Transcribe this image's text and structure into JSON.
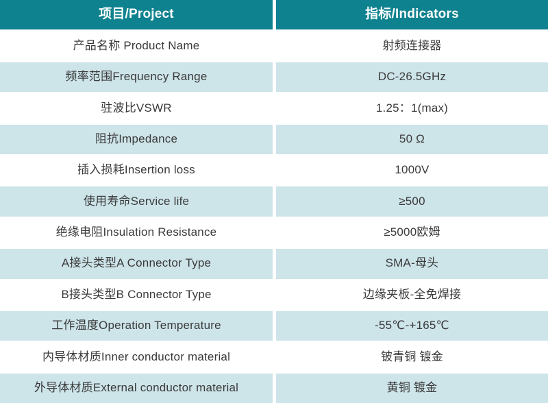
{
  "colors": {
    "header_bg": "#0e828f",
    "header_text": "#ffffff",
    "row_alt_bg": "#cde4e9",
    "row_bg": "#ffffff",
    "body_text": "#3a3a3a",
    "divider": "#ffffff"
  },
  "header": {
    "project": "项目/Project",
    "indicators": "指标/Indicators"
  },
  "rows": [
    {
      "project": "产品名称 Product Name",
      "value": "射频连接器"
    },
    {
      "project": "频率范围Frequency Range",
      "value": "DC-26.5GHz"
    },
    {
      "project": "驻波比VSWR",
      "value": "1.25：1(max)"
    },
    {
      "project": "阻抗Impedance",
      "value": "50 Ω"
    },
    {
      "project": "插入损耗Insertion loss",
      "value": "1000V"
    },
    {
      "project": "使用寿命Service life",
      "value": "≥500"
    },
    {
      "project": "绝缘电阻Insulation Resistance",
      "value": "≥5000欧姆"
    },
    {
      "project": "A接头类型A Connector Type",
      "value": "SMA-母头"
    },
    {
      "project": "B接头类型B Connector Type",
      "value": "边缘夹板-全免焊接"
    },
    {
      "project": "工作温度Operation Temperature",
      "value": "-55℃-+165℃"
    },
    {
      "project": "内导体材质Inner conductor material",
      "value": "铍青铜 镀金"
    },
    {
      "project": "外导体材质External conductor material",
      "value": "黄铜 镀金"
    }
  ]
}
